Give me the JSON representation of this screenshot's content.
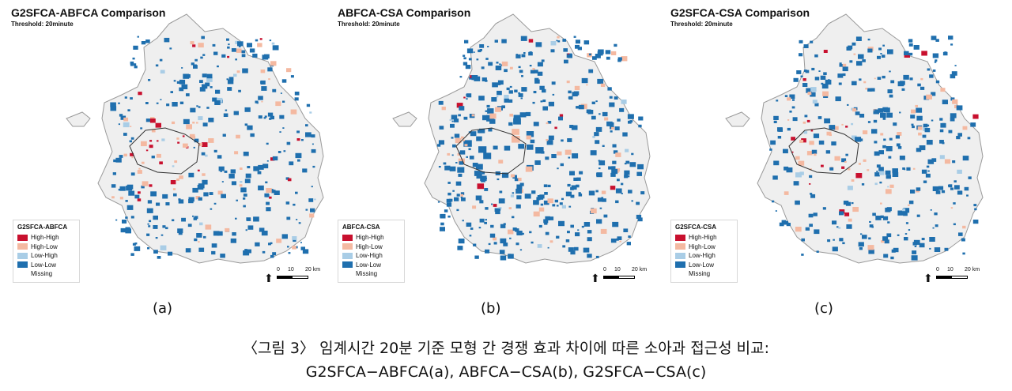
{
  "panels": [
    {
      "title": "G2SFCA-ABFCA Comparison",
      "subtitle": "Threshold: 20minute",
      "legend_title": "G2SFCA-ABFCA",
      "label": "(a)"
    },
    {
      "title": "ABFCA-CSA Comparison",
      "subtitle": "Threshold: 20minute",
      "legend_title": "ABFCA-CSA",
      "label": "(b)"
    },
    {
      "title": "G2SFCA-CSA Comparison",
      "subtitle": "Threshold: 20minute",
      "legend_title": "G2SFCA-CSA",
      "label": "(c)"
    }
  ],
  "legend_items": [
    {
      "label": "High-High",
      "color": "#c8102e"
    },
    {
      "label": "High-Low",
      "color": "#f4b9a1"
    },
    {
      "label": "Low-High",
      "color": "#a9cde6"
    },
    {
      "label": "Low-Low",
      "color": "#1f6fae"
    },
    {
      "label": "Missing",
      "color": "#ffffff"
    }
  ],
  "scale": {
    "ticks": [
      "0",
      "10",
      "20 km"
    ]
  },
  "caption": {
    "line1": "〈그림 3〉 임계시간 20분 기준 모형 간 경쟁 효과 차이에 따른 소아과 접근성 비교:",
    "line2": "G2SFCA−ABFCA(a), ABFCA−CSA(b), G2SFCA−CSA(c)"
  },
  "colors": {
    "map_fill": "#efefef",
    "map_border": "#9a9a9a",
    "inner_border": "#b5b5b5"
  }
}
